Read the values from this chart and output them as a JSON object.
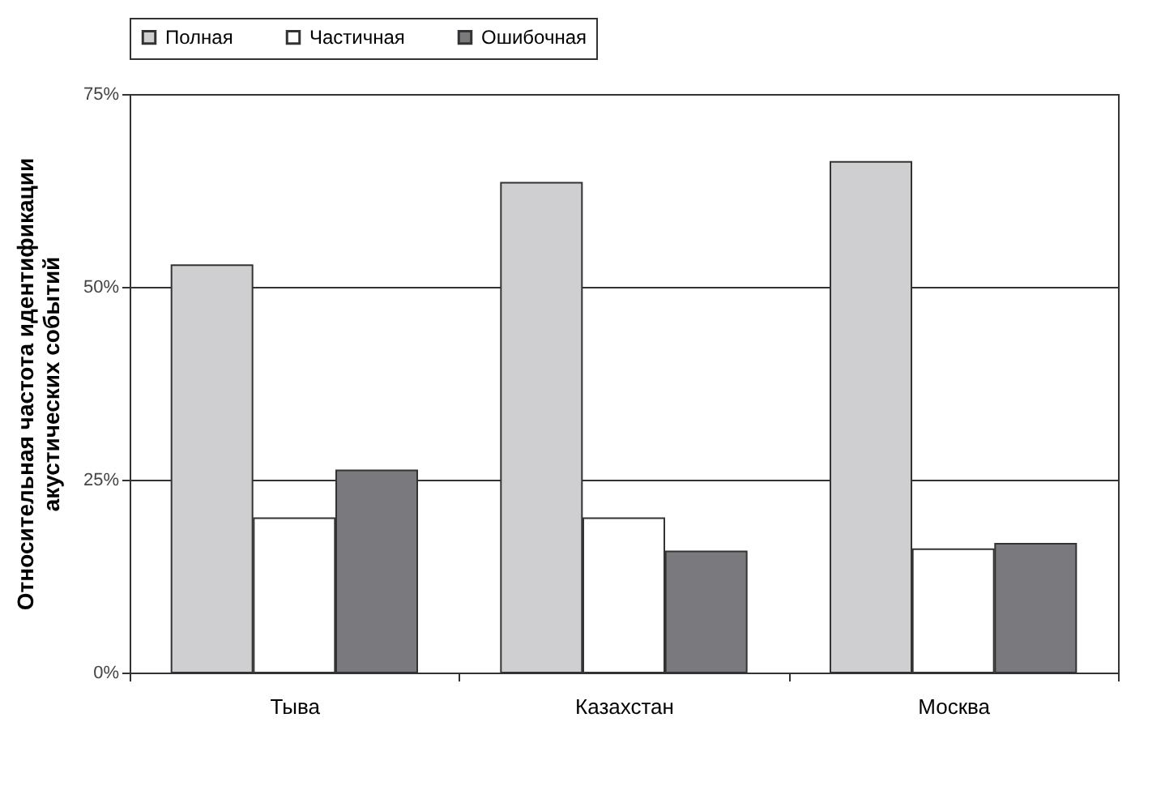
{
  "chart_data": {
    "type": "bar",
    "ylabel": "Относительная частота идентификации\nакустических событий",
    "categories": [
      "Тыва",
      "Казахстан",
      "Москва"
    ],
    "series": [
      {
        "name": "Полная",
        "color": "#cfcfd1",
        "values": [
          52.8,
          63.5,
          66.2
        ]
      },
      {
        "name": "Частичная",
        "color": "#ffffff",
        "values": [
          20,
          20,
          16
        ]
      },
      {
        "name": "Ошибочная",
        "color": "#7a7a7e",
        "values": [
          26.2,
          15.7,
          16.7
        ]
      }
    ],
    "ylim": [
      0,
      75
    ],
    "yticks": [
      {
        "value": 0,
        "label": "0%"
      },
      {
        "value": 25,
        "label": "25%"
      },
      {
        "value": 50,
        "label": "50%"
      },
      {
        "value": 75,
        "label": "75%"
      }
    ],
    "grid": "y",
    "legend": "top"
  }
}
